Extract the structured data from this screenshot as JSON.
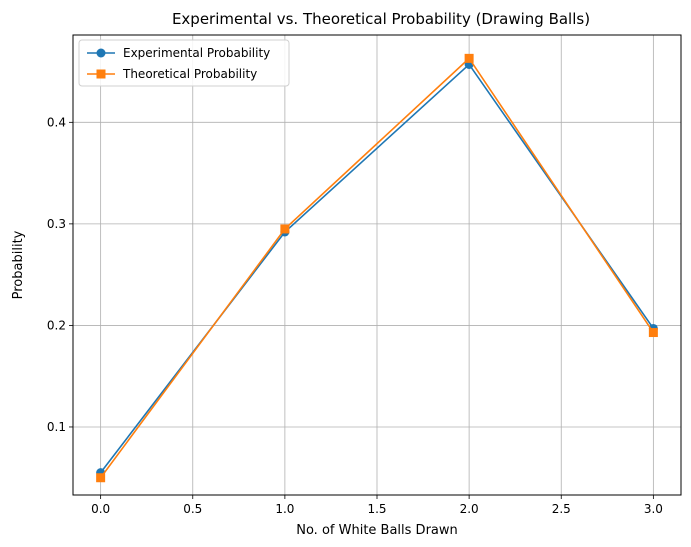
{
  "chart_data": {
    "type": "line",
    "title": "Experimental vs. Theoretical Probability (Drawing Balls)",
    "xlabel": "No. of White Balls Drawn",
    "ylabel": "Probability",
    "x": [
      0,
      1,
      2,
      3
    ],
    "xlim": [
      -0.15,
      3.15
    ],
    "ylim": [
      0.033,
      0.486
    ],
    "xticks": [
      0.0,
      0.5,
      1.0,
      1.5,
      2.0,
      2.5,
      3.0
    ],
    "xtick_labels": [
      "0.0",
      "0.5",
      "1.0",
      "1.5",
      "2.0",
      "2.5",
      "3.0"
    ],
    "yticks": [
      0.1,
      0.2,
      0.3,
      0.4
    ],
    "ytick_labels": [
      "0.1",
      "0.2",
      "0.3",
      "0.4"
    ],
    "grid": true,
    "legend_position": "top-left",
    "series": [
      {
        "name": "Experimental Probability",
        "values": [
          0.055,
          0.292,
          0.457,
          0.197
        ],
        "color": "#1f77b4",
        "marker": "circle"
      },
      {
        "name": "Theoretical Probability",
        "values": [
          0.05,
          0.295,
          0.463,
          0.193
        ],
        "color": "#ff7f0e",
        "marker": "square"
      }
    ]
  }
}
